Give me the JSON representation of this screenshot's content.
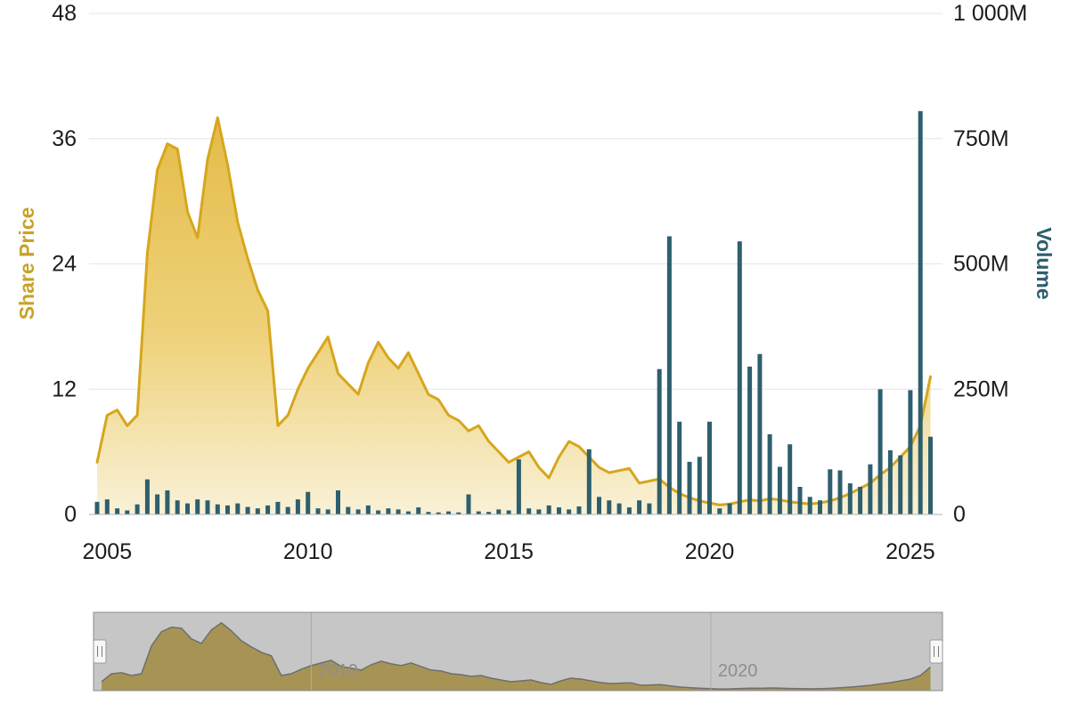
{
  "chart_data": {
    "type": "combo",
    "title": "",
    "x_start": 2004.75,
    "x_step_years": 0.25,
    "x_axis": {
      "range": [
        2004.55,
        2025.8
      ],
      "ticks": [
        2005,
        2010,
        2015,
        2020,
        2025
      ],
      "labels": [
        "2005",
        "2010",
        "2015",
        "2020",
        "2025"
      ]
    },
    "y_axis_left": {
      "title": "Share Price",
      "color": "#C9A227",
      "range": [
        0,
        48
      ],
      "ticks": [
        0,
        12,
        24,
        36,
        48
      ],
      "labels": [
        "0",
        "12",
        "24",
        "36",
        "48"
      ]
    },
    "y_axis_right": {
      "title": "Volume",
      "color": "#2E5F6E",
      "range": [
        0,
        1000
      ],
      "ticks": [
        0,
        250,
        500,
        750,
        1000
      ],
      "labels": [
        "0",
        "250M",
        "500M",
        "750M",
        "1 000M"
      ]
    },
    "grid": "horizontal-only",
    "legend": "none",
    "series": [
      {
        "name": "Share Price",
        "type": "area",
        "axis": "left",
        "color": "#D6A61C",
        "fill_top": "#E2B83E",
        "fill_mid": "#ECCB68",
        "fill_bottom": "#F8EFD0",
        "values": [
          5,
          9.5,
          10,
          8.5,
          9.5,
          25,
          33,
          35.5,
          35,
          29,
          26.5,
          34,
          38,
          33.5,
          28,
          24.5,
          21.5,
          19.5,
          8.5,
          9.5,
          12,
          14,
          15.5,
          17,
          13.5,
          12.5,
          11.5,
          14.5,
          16.5,
          15,
          14,
          15.5,
          13.5,
          11.5,
          11,
          9.5,
          9,
          8,
          8.5,
          7,
          6,
          5,
          5.5,
          6,
          4.5,
          3.5,
          5.5,
          7,
          6.5,
          5.5,
          4.5,
          4,
          4.2,
          4.4,
          3,
          3.2,
          3.4,
          2.6,
          2,
          1.6,
          1.3,
          1.1,
          0.9,
          1,
          1.2,
          1.4,
          1.3,
          1.5,
          1.4,
          1.2,
          1.1,
          1,
          1.1,
          1.3,
          1.6,
          2,
          2.5,
          3,
          3.8,
          4.5,
          5.5,
          6.5,
          8.5,
          13.2
        ]
      },
      {
        "name": "Volume",
        "type": "bar",
        "axis": "right",
        "color": "#2E5F6E",
        "values": [
          25,
          30,
          12,
          8,
          20,
          70,
          40,
          48,
          28,
          22,
          30,
          28,
          20,
          18,
          22,
          15,
          12,
          18,
          25,
          15,
          30,
          45,
          12,
          10,
          48,
          15,
          10,
          18,
          8,
          12,
          10,
          6,
          14,
          5,
          4,
          6,
          4,
          40,
          6,
          5,
          10,
          8,
          110,
          12,
          10,
          18,
          14,
          10,
          16,
          130,
          35,
          28,
          22,
          14,
          28,
          22,
          290,
          555,
          185,
          105,
          115,
          185,
          12,
          22,
          545,
          295,
          320,
          160,
          95,
          140,
          55,
          35,
          28,
          90,
          88,
          62,
          55,
          100,
          250,
          128,
          118,
          248,
          805,
          155
        ]
      }
    ]
  },
  "navigator": {
    "mask_color": "#c6c6c6",
    "series_fill": "#a48f4b",
    "series_line": "#6e6e6e",
    "outline_color": "#8c8c8c",
    "tick_labels": [
      {
        "year": 2010,
        "label": "2010"
      },
      {
        "year": 2020,
        "label": "2020"
      }
    ]
  }
}
